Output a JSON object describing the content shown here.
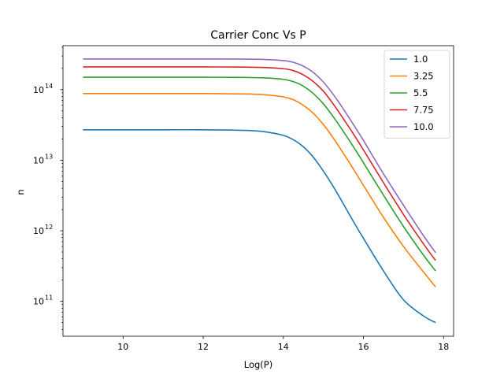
{
  "chart_data": {
    "type": "line",
    "title": "Carrier Conc Vs P",
    "xlabel": "Log(P)",
    "ylabel": "n",
    "yscale": "log",
    "xlim": [
      8.5,
      18.25
    ],
    "ylim": [
      32000000000.0,
      420000000000000.0
    ],
    "xticks": [
      10,
      12,
      14,
      16,
      18
    ],
    "yticks": [
      {
        "value": 100000000000.0,
        "base": "10",
        "exp": "11"
      },
      {
        "value": 1000000000000.0,
        "base": "10",
        "exp": "12"
      },
      {
        "value": 10000000000000.0,
        "base": "10",
        "exp": "13"
      },
      {
        "value": 100000000000000.0,
        "base": "10",
        "exp": "14"
      }
    ],
    "legend_position": "top-right",
    "grid": false,
    "x": [
      9.0,
      10.0,
      11.0,
      12.0,
      13.0,
      13.5,
      14.0,
      14.25,
      14.5,
      14.75,
      15.0,
      15.25,
      15.5,
      15.75,
      16.0,
      16.5,
      17.0,
      17.5,
      17.8
    ],
    "series": [
      {
        "name": "1.0",
        "color": "#1f77b4",
        "values": [
          27000000000000.0,
          27000000000000.0,
          27000000000000.0,
          27000000000000.0,
          26500000000000.0,
          25500000000000.0,
          22500000000000.0,
          19500000000000.0,
          15500000000000.0,
          11000000000000.0,
          7000000000000.0,
          4200000000000.0,
          2400000000000.0,
          1350000000000.0,
          780000000000.0,
          270000000000.0,
          105000000000.0,
          62000000000.0,
          50000000000.0
        ]
      },
      {
        "name": "3.25",
        "color": "#ff7f0e",
        "values": [
          88000000000000.0,
          88000000000000.0,
          88000000000000.0,
          88000000000000.0,
          87000000000000.0,
          85000000000000.0,
          79000000000000.0,
          72000000000000.0,
          60000000000000.0,
          46000000000000.0,
          32000000000000.0,
          20500000000000.0,
          12500000000000.0,
          7500000000000.0,
          4400000000000.0,
          1550000000000.0,
          600000000000.0,
          260000000000.0,
          160000000000.0
        ]
      },
      {
        "name": "5.5",
        "color": "#2ca02c",
        "values": [
          150000000000000.0,
          150000000000000.0,
          150000000000000.0,
          150000000000000.0,
          149000000000000.0,
          147000000000000.0,
          140000000000000.0,
          130000000000000.0,
          112000000000000.0,
          88000000000000.0,
          63000000000000.0,
          41000000000000.0,
          25500000000000.0,
          15500000000000.0,
          9200000000000.0,
          3200000000000.0,
          1150000000000.0,
          450000000000.0,
          270000000000.0
        ]
      },
      {
        "name": "7.75",
        "color": "#d62728",
        "values": [
          210000000000000.0,
          210000000000000.0,
          210000000000000.0,
          210000000000000.0,
          209000000000000.0,
          206000000000000.0,
          198000000000000.0,
          186000000000000.0,
          162000000000000.0,
          130000000000000.0,
          95000000000000.0,
          62000000000000.0,
          38500000000000.0,
          23500000000000.0,
          14000000000000.0,
          4800000000000.0,
          1700000000000.0,
          650000000000.0,
          380000000000.0
        ]
      },
      {
        "name": "10.0",
        "color": "#9467bd",
        "values": [
          272000000000000.0,
          272000000000000.0,
          272000000000000.0,
          272000000000000.0,
          271000000000000.0,
          268000000000000.0,
          258000000000000.0,
          244000000000000.0,
          215000000000000.0,
          175000000000000.0,
          128000000000000.0,
          85000000000000.0,
          53000000000000.0,
          32000000000000.0,
          19000000000000.0,
          6400000000000.0,
          2300000000000.0,
          850000000000.0,
          490000000000.0
        ]
      }
    ]
  }
}
